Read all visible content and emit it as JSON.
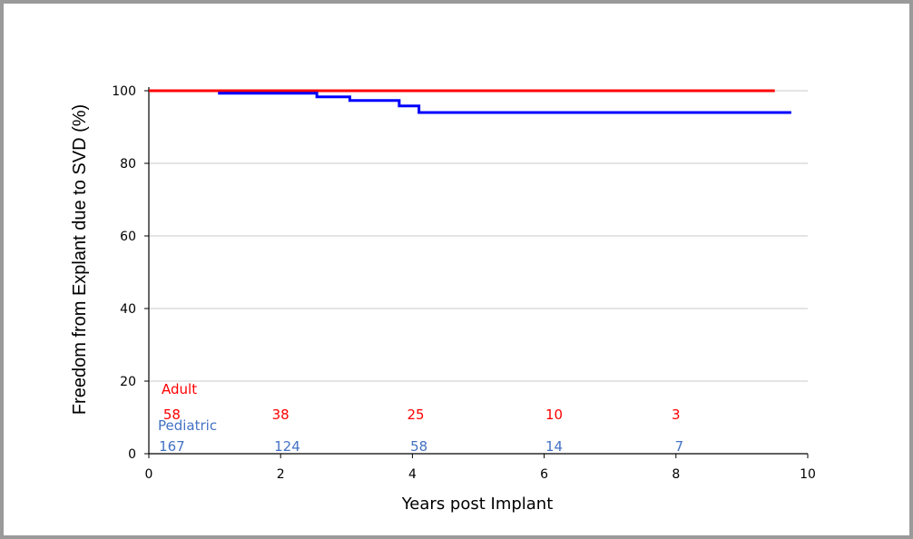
{
  "chart_data": {
    "type": "line",
    "xlabel": "Years post Implant",
    "ylabel": "Freedom from Explant due to SVD (%)",
    "xlim": [
      0,
      10
    ],
    "ylim": [
      0,
      100
    ],
    "x_ticks": [
      "0",
      "2",
      "4",
      "6",
      "8",
      "10"
    ],
    "y_ticks": [
      "0",
      "20",
      "40",
      "60",
      "80",
      "100"
    ],
    "grid": true,
    "colors": {
      "Adult": "#ff0000",
      "Pediatric": "#0000ff"
    },
    "series": [
      {
        "name": "Adult",
        "step": true,
        "points": [
          [
            0,
            100
          ],
          [
            9.5,
            100
          ]
        ]
      },
      {
        "name": "Pediatric",
        "step": true,
        "points": [
          [
            1.05,
            99.3
          ],
          [
            2.55,
            98.3
          ],
          [
            3.05,
            97.3
          ],
          [
            3.8,
            95.8
          ],
          [
            4.1,
            94.0
          ],
          [
            9.75,
            94.0
          ]
        ]
      }
    ],
    "risk_table": [
      {
        "group": "Adult",
        "color": "#ff0000",
        "x": [
          0.35,
          2.0,
          4.05,
          6.15,
          8.0
        ],
        "counts": [
          "58",
          "38",
          "25",
          "10",
          "3"
        ]
      },
      {
        "group": "Pediatric",
        "color": "#4472c4",
        "x": [
          0.35,
          2.1,
          4.1,
          6.15,
          8.05
        ],
        "counts": [
          "167",
          "124",
          "58",
          "14",
          "7"
        ]
      }
    ]
  }
}
